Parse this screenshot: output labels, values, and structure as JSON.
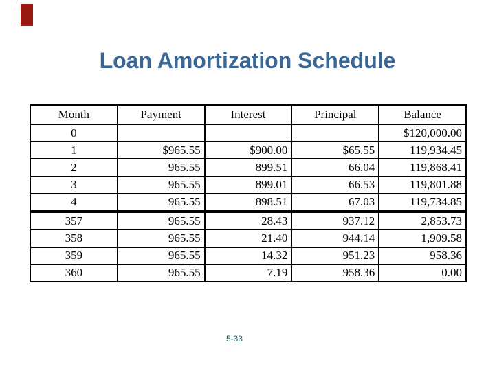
{
  "slide": {
    "title": "Loan Amortization Schedule",
    "page_number": "5-33"
  },
  "table": {
    "columns": [
      "Month",
      "Payment",
      "Interest",
      "Principal",
      "Balance"
    ],
    "rows": [
      [
        "0",
        "",
        "",
        "",
        "$120,000.00"
      ],
      [
        "1",
        "$965.55",
        "$900.00",
        "$65.55",
        "119,934.45"
      ],
      [
        "2",
        "965.55",
        "899.51",
        "66.04",
        "119,868.41"
      ],
      [
        "3",
        "965.55",
        "899.01",
        "66.53",
        "119,801.88"
      ],
      [
        "4",
        "965.55",
        "898.51",
        "67.03",
        "119,734.85"
      ],
      [
        "",
        "",
        "",
        "",
        ""
      ],
      [
        "357",
        "965.55",
        "28.43",
        "937.12",
        "2,853.73"
      ],
      [
        "358",
        "965.55",
        "21.40",
        "944.14",
        "1,909.58"
      ],
      [
        "359",
        "965.55",
        "14.32",
        "951.23",
        "958.36"
      ],
      [
        "360",
        "965.55",
        "7.19",
        "958.36",
        "0.00"
      ]
    ]
  },
  "colors": {
    "title": "#3A6795",
    "page_number": "#1E6262",
    "accent_bar": "#981812",
    "table_border": "#000000"
  }
}
